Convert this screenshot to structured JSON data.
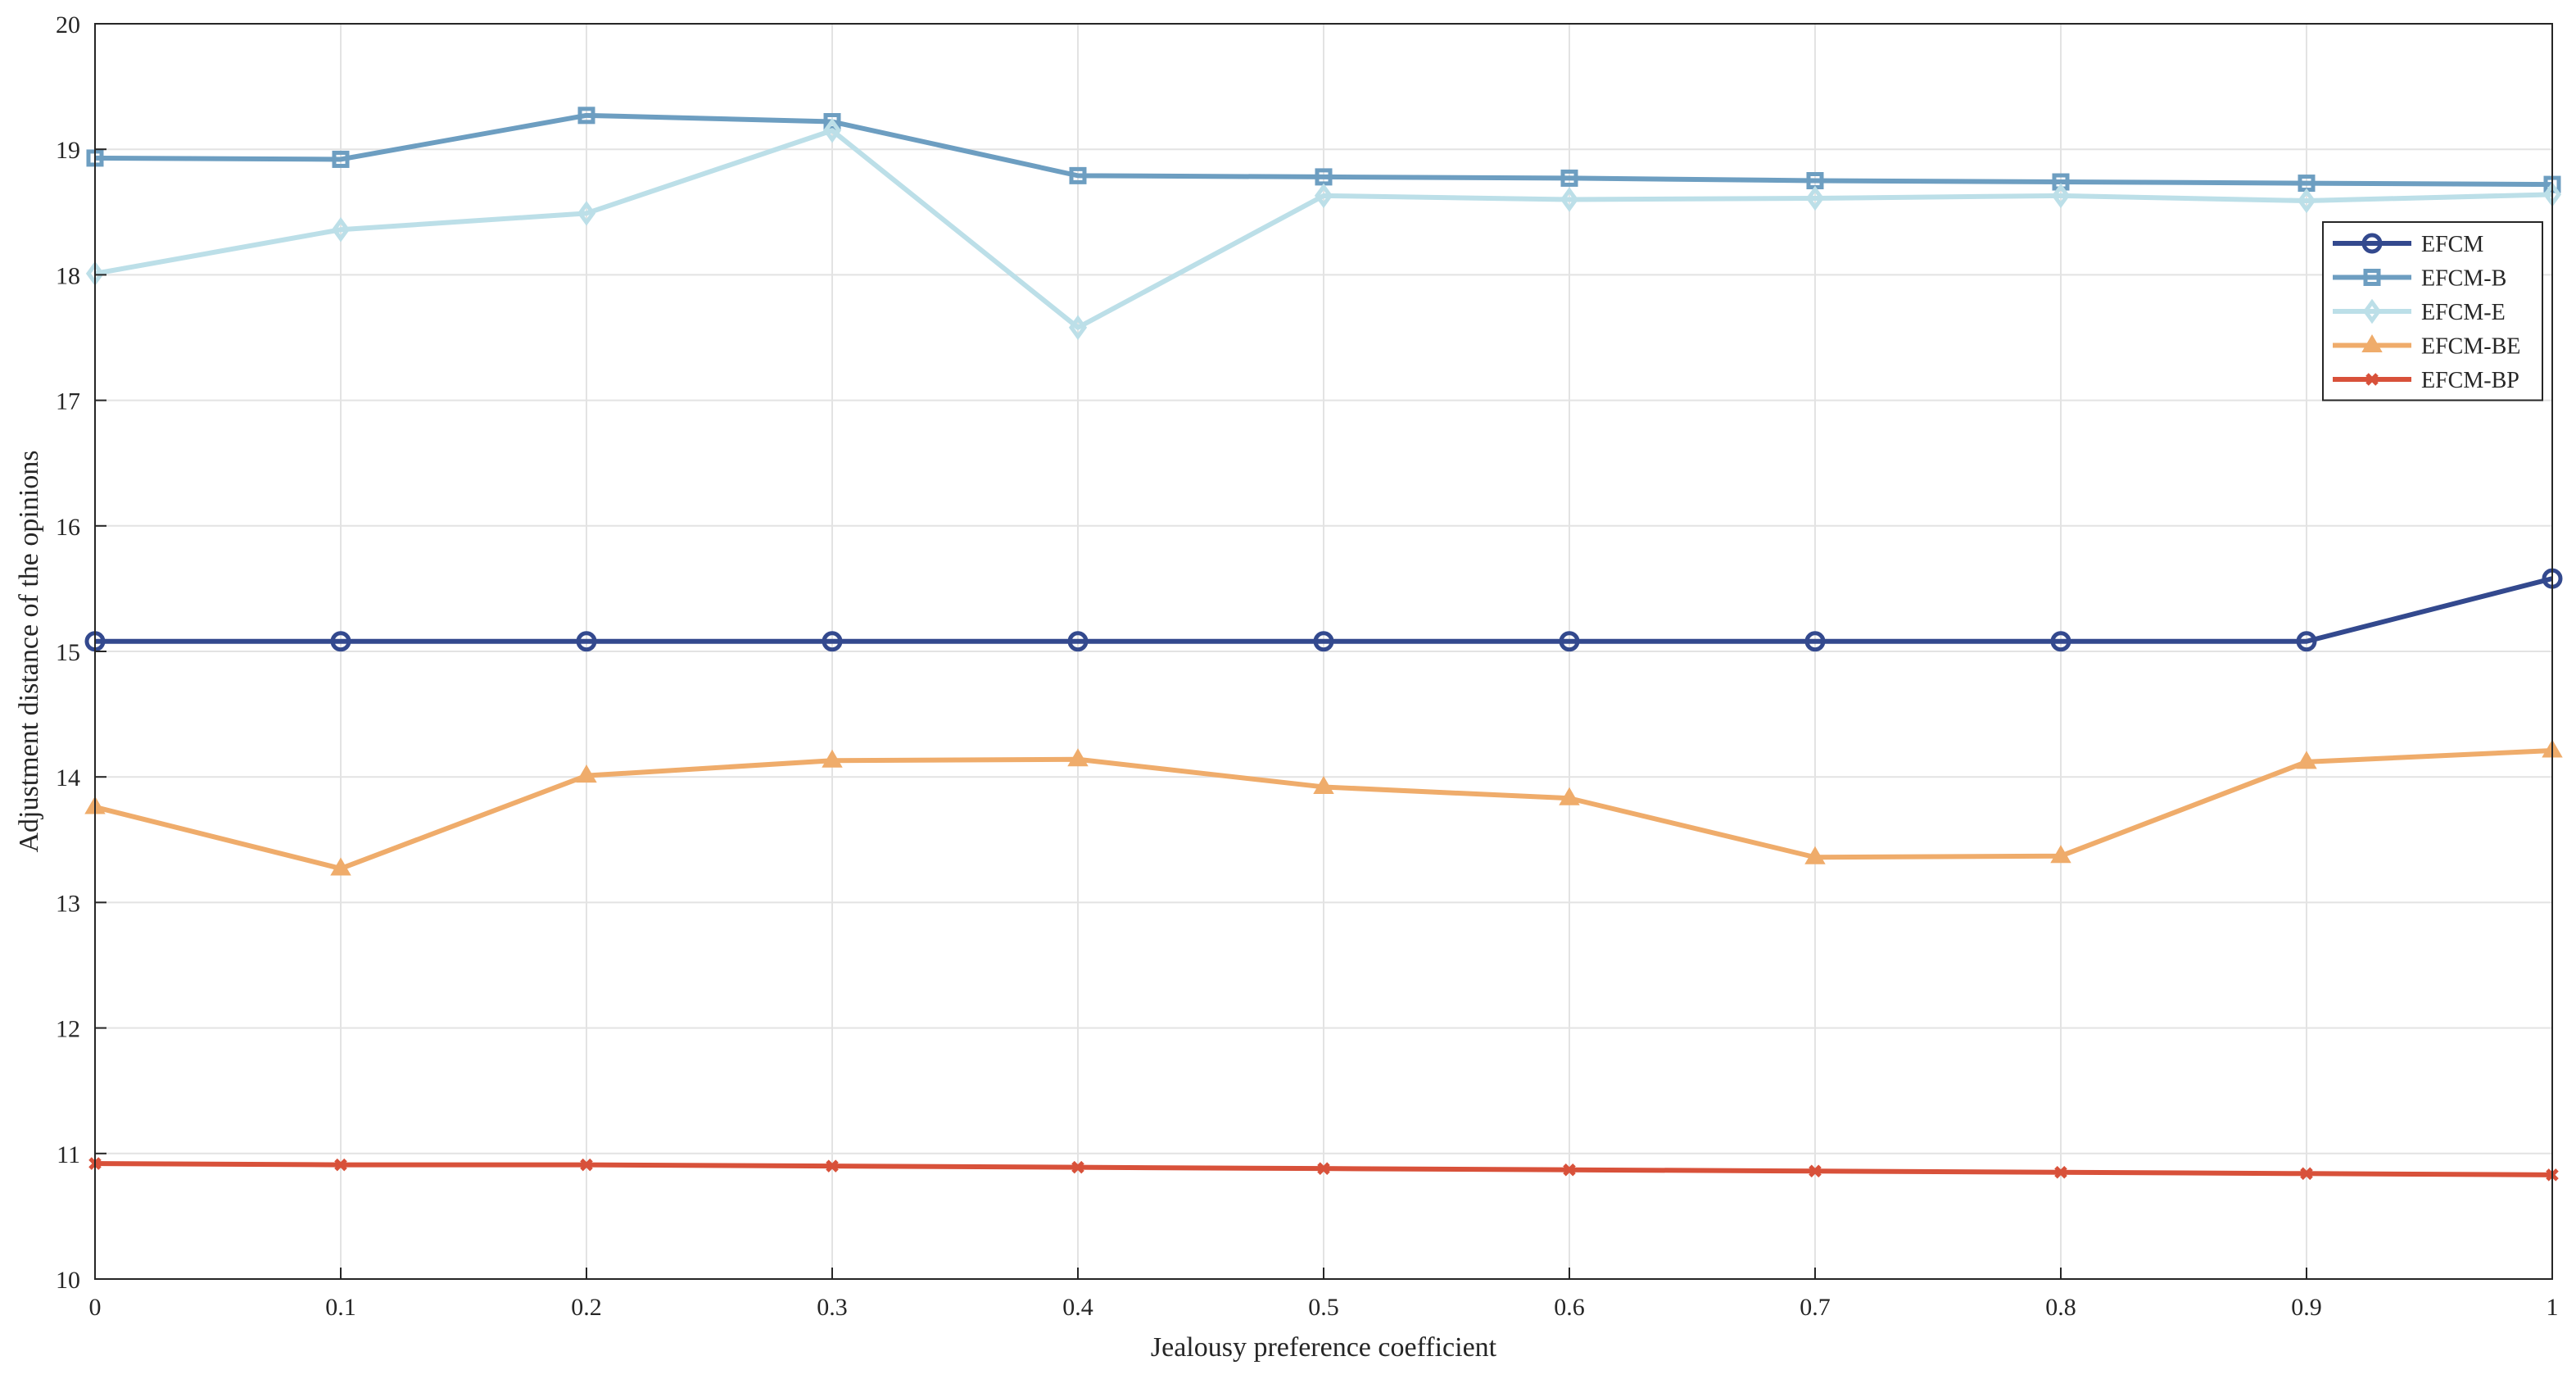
{
  "chart_data": {
    "type": "line",
    "title": "",
    "xlabel": "Jealousy preference coefficient",
    "ylabel": "Adjustment distance of the opinions",
    "xlim": [
      0,
      1
    ],
    "ylim": [
      10,
      20
    ],
    "xticks": [
      "0",
      "0.1",
      "0.2",
      "0.3",
      "0.4",
      "0.5",
      "0.6",
      "0.7",
      "0.8",
      "0.9",
      "1"
    ],
    "yticks": [
      "10",
      "11",
      "12",
      "13",
      "14",
      "15",
      "16",
      "17",
      "18",
      "19",
      "20"
    ],
    "grid": true,
    "legend_position": "top-right",
    "x": [
      0,
      0.1,
      0.2,
      0.3,
      0.4,
      0.5,
      0.6,
      0.7,
      0.8,
      0.9,
      1
    ],
    "series": [
      {
        "name": "EFCM",
        "color": "#33498E",
        "marker": "circle",
        "values": [
          15.08,
          15.08,
          15.08,
          15.08,
          15.08,
          15.08,
          15.08,
          15.08,
          15.08,
          15.08,
          15.58
        ]
      },
      {
        "name": "EFCM-B",
        "color": "#6D9EC1",
        "marker": "square",
        "values": [
          18.93,
          18.92,
          19.27,
          19.22,
          18.79,
          18.78,
          18.77,
          18.75,
          18.74,
          18.73,
          18.72
        ]
      },
      {
        "name": "EFCM-E",
        "color": "#BCDFE8",
        "marker": "diamond",
        "values": [
          18.01,
          18.36,
          18.49,
          19.15,
          17.58,
          18.63,
          18.6,
          18.61,
          18.63,
          18.59,
          18.64
        ]
      },
      {
        "name": "EFCM-BE",
        "color": "#EFAC6B",
        "marker": "triangle",
        "values": [
          13.76,
          13.27,
          14.01,
          14.13,
          14.14,
          13.92,
          13.83,
          13.36,
          13.37,
          14.12,
          14.21
        ]
      },
      {
        "name": "EFCM-BP",
        "color": "#D8513A",
        "marker": "x",
        "values": [
          10.92,
          10.91,
          10.91,
          10.9,
          10.89,
          10.88,
          10.87,
          10.86,
          10.85,
          10.84,
          10.83
        ]
      }
    ]
  }
}
